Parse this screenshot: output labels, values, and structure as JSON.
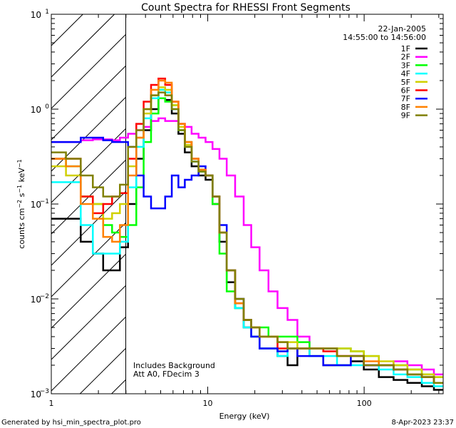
{
  "chart_data": {
    "type": "line",
    "title": "Count Spectra for RHESSI Front Segments",
    "xlabel": "Energy (keV)",
    "ylabel": "counts cm^-2 s^-1 keV^-1",
    "xscale": "log",
    "yscale": "log",
    "xlim": [
      1,
      320
    ],
    "ylim": [
      0.001,
      10
    ],
    "x_ticks": [
      {
        "value": 1,
        "label": "1"
      },
      {
        "value": 10,
        "label": "10"
      },
      {
        "value": 100,
        "label": "100"
      }
    ],
    "y_ticks": [
      {
        "value": 10,
        "base": "10",
        "exp": "1"
      },
      {
        "value": 1,
        "base": "10",
        "exp": "0"
      },
      {
        "value": 0.1,
        "base": "10",
        "exp": "−1"
      },
      {
        "value": 0.01,
        "base": "10",
        "exp": "−2"
      },
      {
        "value": 0.001,
        "base": "10",
        "exp": "−3"
      }
    ],
    "hatched_region_keV": [
      1,
      3
    ],
    "legend_position": "top-right",
    "date": "22-Jan-2005",
    "time_range": "14:55:00 to 14:56:00",
    "annotations": [
      "Includes Background",
      "Att A0, FDecim 3"
    ],
    "x": [
      1.1,
      1.4,
      1.7,
      2.0,
      2.3,
      2.6,
      2.9,
      3.3,
      3.7,
      4.1,
      4.6,
      5.1,
      5.6,
      6.2,
      6.8,
      7.5,
      8.3,
      9.2,
      10.2,
      11.3,
      12.5,
      14,
      16,
      18,
      20,
      23,
      26,
      30,
      35,
      40,
      50,
      60,
      75,
      90,
      110,
      140,
      170,
      210,
      260,
      300
    ],
    "series": [
      {
        "name": "1F",
        "color": "#000000",
        "values": [
          0.07,
          0.07,
          0.04,
          0.03,
          0.02,
          0.02,
          0.035,
          0.1,
          0.3,
          0.6,
          1.0,
          1.3,
          1.25,
          0.9,
          0.55,
          0.35,
          0.25,
          0.2,
          0.18,
          0.1,
          0.04,
          0.015,
          0.008,
          0.005,
          0.004,
          0.003,
          0.003,
          0.0025,
          0.002,
          0.003,
          0.0025,
          0.002,
          0.002,
          0.0022,
          0.0018,
          0.0015,
          0.0014,
          0.0013,
          0.0012,
          0.0011
        ]
      },
      {
        "name": "2F",
        "color": "#ff00ff",
        "values": [
          0.45,
          0.45,
          0.47,
          0.48,
          0.48,
          0.47,
          0.5,
          0.55,
          0.6,
          0.65,
          0.75,
          0.8,
          0.75,
          0.75,
          0.7,
          0.65,
          0.55,
          0.5,
          0.45,
          0.38,
          0.3,
          0.2,
          0.12,
          0.06,
          0.035,
          0.02,
          0.012,
          0.008,
          0.006,
          0.004,
          0.003,
          0.003,
          0.0025,
          0.0025,
          0.002,
          0.002,
          0.0022,
          0.002,
          0.0018,
          0.0016
        ]
      },
      {
        "name": "3F",
        "color": "#00ff00",
        "values": [
          0.3,
          0.25,
          0.12,
          0.1,
          0.06,
          0.05,
          0.045,
          0.06,
          0.15,
          0.45,
          0.9,
          1.3,
          1.2,
          1.1,
          0.6,
          0.45,
          0.3,
          0.22,
          0.2,
          0.1,
          0.03,
          0.012,
          0.008,
          0.006,
          0.005,
          0.005,
          0.004,
          0.004,
          0.004,
          0.0035,
          0.003,
          0.003,
          0.003,
          0.0028,
          0.0025,
          0.002,
          0.002,
          0.0018,
          0.0016,
          0.0015
        ]
      },
      {
        "name": "4F",
        "color": "#00ffff",
        "values": [
          0.17,
          0.17,
          0.06,
          0.03,
          0.03,
          0.03,
          0.04,
          0.15,
          0.4,
          0.8,
          1.3,
          1.6,
          1.5,
          1.0,
          0.6,
          0.4,
          0.28,
          0.22,
          0.2,
          0.12,
          0.05,
          0.02,
          0.008,
          0.005,
          0.004,
          0.003,
          0.003,
          0.0025,
          0.003,
          0.003,
          0.0025,
          0.0025,
          0.002,
          0.002,
          0.002,
          0.0018,
          0.0016,
          0.0015,
          0.0013,
          0.0012
        ]
      },
      {
        "name": "5F",
        "color": "#d0d000",
        "values": [
          0.25,
          0.2,
          0.12,
          0.1,
          0.07,
          0.08,
          0.1,
          0.25,
          0.5,
          0.9,
          1.4,
          1.7,
          1.6,
          1.1,
          0.65,
          0.42,
          0.3,
          0.23,
          0.2,
          0.12,
          0.05,
          0.02,
          0.01,
          0.006,
          0.005,
          0.004,
          0.004,
          0.0035,
          0.0035,
          0.003,
          0.003,
          0.003,
          0.003,
          0.0028,
          0.0025,
          0.0022,
          0.002,
          0.0018,
          0.0016,
          0.0015
        ]
      },
      {
        "name": "6F",
        "color": "#ff0000",
        "values": [
          0.3,
          0.3,
          0.12,
          0.08,
          0.1,
          0.12,
          0.13,
          0.3,
          0.7,
          1.2,
          1.8,
          2.1,
          1.8,
          1.2,
          0.7,
          0.45,
          0.3,
          0.23,
          0.2,
          0.12,
          0.05,
          0.02,
          0.009,
          0.006,
          0.005,
          0.004,
          0.004,
          0.003,
          0.003,
          0.003,
          0.003,
          0.0028,
          0.0025,
          0.0025,
          0.002,
          0.002,
          0.0018,
          0.0016,
          0.0015,
          0.0013
        ]
      },
      {
        "name": "7F",
        "color": "#0000ff",
        "values": [
          0.45,
          0.45,
          0.5,
          0.5,
          0.47,
          0.45,
          0.45,
          0.4,
          0.2,
          0.12,
          0.09,
          0.09,
          0.12,
          0.2,
          0.15,
          0.18,
          0.2,
          0.25,
          0.2,
          0.12,
          0.06,
          0.02,
          0.01,
          0.006,
          0.004,
          0.003,
          0.003,
          0.0028,
          0.003,
          0.0025,
          0.0025,
          0.002,
          0.002,
          0.0025,
          0.002,
          0.002,
          0.0018,
          0.0016,
          0.0015,
          0.0013
        ]
      },
      {
        "name": "8F",
        "color": "#ff8000",
        "values": [
          0.3,
          0.25,
          0.1,
          0.07,
          0.045,
          0.04,
          0.06,
          0.2,
          0.5,
          1.0,
          1.6,
          2.0,
          1.9,
          1.2,
          0.7,
          0.45,
          0.3,
          0.23,
          0.2,
          0.12,
          0.05,
          0.02,
          0.009,
          0.006,
          0.005,
          0.004,
          0.004,
          0.0035,
          0.003,
          0.003,
          0.003,
          0.003,
          0.0025,
          0.0025,
          0.0022,
          0.002,
          0.0018,
          0.0016,
          0.0015,
          0.0013
        ]
      },
      {
        "name": "9F",
        "color": "#808000",
        "values": [
          0.35,
          0.3,
          0.2,
          0.15,
          0.12,
          0.12,
          0.16,
          0.4,
          0.6,
          1.0,
          1.4,
          1.5,
          1.4,
          1.0,
          0.6,
          0.4,
          0.28,
          0.22,
          0.2,
          0.12,
          0.05,
          0.02,
          0.01,
          0.006,
          0.005,
          0.004,
          0.004,
          0.0035,
          0.003,
          0.003,
          0.003,
          0.003,
          0.0025,
          0.0025,
          0.002,
          0.002,
          0.0018,
          0.0016,
          0.0015,
          0.0013
        ]
      }
    ]
  },
  "footer": {
    "generated_by": "Generated by hsi_min_spectra_plot.pro",
    "timestamp": "8-Apr-2023 23:37"
  }
}
